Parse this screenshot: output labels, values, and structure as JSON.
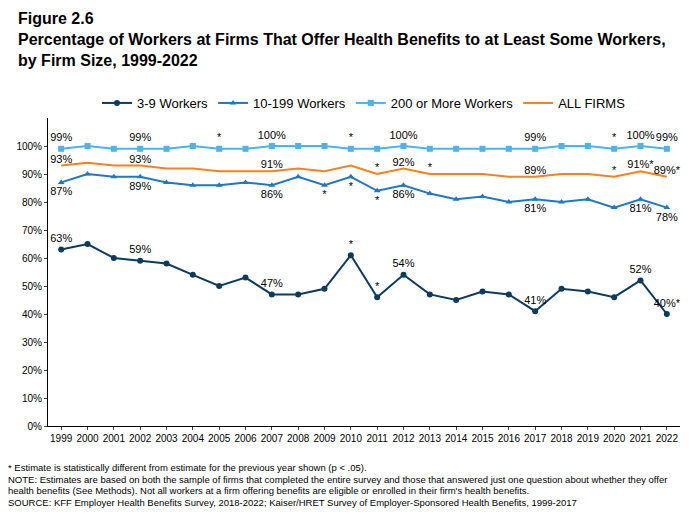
{
  "chart_data": {
    "type": "line",
    "title": "Figure 2.6",
    "subtitle": "Percentage of Workers at Firms That Offer Health Benefits to at Least Some Workers, by Firm Size, 1999-2022",
    "notes": [
      "* Estimate is statistically different from estimate for the previous year shown (p < .05).",
      "NOTE: Estimates are based on both the sample of firms that completed the entire survey and those that answered just one question about whether they offer health benefits (See Methods).  Not all workers at a firm offering benefits are eligible or enrolled in their firm's health benefits.",
      "SOURCE: KFF Employer Health Benefits Survey, 2018-2022; Kaiser/HRET Survey of Employer-Sponsored Health Benefits, 1999-2017"
    ],
    "categories": [
      "1999",
      "2000",
      "2001",
      "2002",
      "2003",
      "2004",
      "2005",
      "2006",
      "2007",
      "2008",
      "2009",
      "2010",
      "2011",
      "2012",
      "2013",
      "2014",
      "2015",
      "2016",
      "2017",
      "2018",
      "2019",
      "2020",
      "2021",
      "2022"
    ],
    "series": [
      {
        "name": "3-9 Workers",
        "color": "#0d3b5e",
        "marker": "circle",
        "values": [
          63,
          65,
          60,
          59,
          58,
          54,
          50,
          53,
          47,
          47,
          49,
          61,
          46,
          54,
          47,
          45,
          48,
          47,
          41,
          49,
          48,
          46,
          52,
          40
        ],
        "value_labels": [
          "63%",
          null,
          null,
          "59%",
          null,
          null,
          null,
          null,
          "47%",
          null,
          null,
          "*",
          "*",
          "54%",
          null,
          null,
          null,
          null,
          "41%",
          null,
          null,
          null,
          "52%",
          "40%*"
        ]
      },
      {
        "name": "10-199 Workers",
        "color": "#1f78c1",
        "marker": "triangle-up",
        "values": [
          87,
          90,
          89,
          89,
          87,
          86,
          86,
          87,
          86,
          89,
          86,
          89,
          84,
          86,
          83,
          81,
          82,
          80,
          81,
          80,
          81,
          78,
          81,
          78
        ],
        "value_labels": [
          "87%",
          null,
          null,
          "89%",
          null,
          null,
          null,
          null,
          "86%",
          null,
          "*",
          "*",
          "*",
          "86%",
          null,
          null,
          null,
          null,
          "81%",
          null,
          null,
          null,
          "81%",
          "78%"
        ]
      },
      {
        "name": "200 or More Workers",
        "color": "#4db3ea",
        "marker": "square",
        "values": [
          99,
          100,
          99,
          99,
          99,
          100,
          99,
          99,
          100,
          100,
          100,
          99,
          99,
          100,
          99,
          99,
          99,
          99,
          99,
          100,
          100,
          99,
          100,
          99
        ],
        "value_labels": [
          "99%",
          null,
          null,
          "99%",
          null,
          null,
          "*",
          null,
          "100%",
          null,
          null,
          "*",
          null,
          "100%",
          null,
          null,
          null,
          null,
          "99%",
          null,
          null,
          "*",
          "100%",
          "99%"
        ]
      },
      {
        "name": "ALL FIRMS",
        "color": "#f5821f",
        "marker": "none",
        "values": [
          93,
          94,
          93,
          93,
          92,
          92,
          91,
          91,
          91,
          92,
          91,
          93,
          90,
          92,
          90,
          90,
          90,
          89,
          89,
          90,
          90,
          89,
          91,
          89
        ],
        "value_labels": [
          "93%",
          null,
          null,
          "93%",
          null,
          null,
          null,
          null,
          "91%",
          null,
          null,
          null,
          "*",
          "92%",
          "*",
          null,
          null,
          null,
          "89%",
          null,
          null,
          "*",
          "91%*",
          "89%*"
        ]
      }
    ],
    "ylim": [
      0,
      110
    ],
    "yticks": [
      {
        "value": 0,
        "label": "0%"
      },
      {
        "value": 10,
        "label": "10%"
      },
      {
        "value": 20,
        "label": "20%"
      },
      {
        "value": 30,
        "label": "30%"
      },
      {
        "value": 40,
        "label": "40%"
      },
      {
        "value": 50,
        "label": "50%"
      },
      {
        "value": 60,
        "label": "60%"
      },
      {
        "value": 70,
        "label": "70%"
      },
      {
        "value": 80,
        "label": "80%"
      },
      {
        "value": 90,
        "label": "90%"
      },
      {
        "value": 100,
        "label": "100%"
      }
    ],
    "grid": false,
    "legend": "top",
    "data_labels": true
  }
}
